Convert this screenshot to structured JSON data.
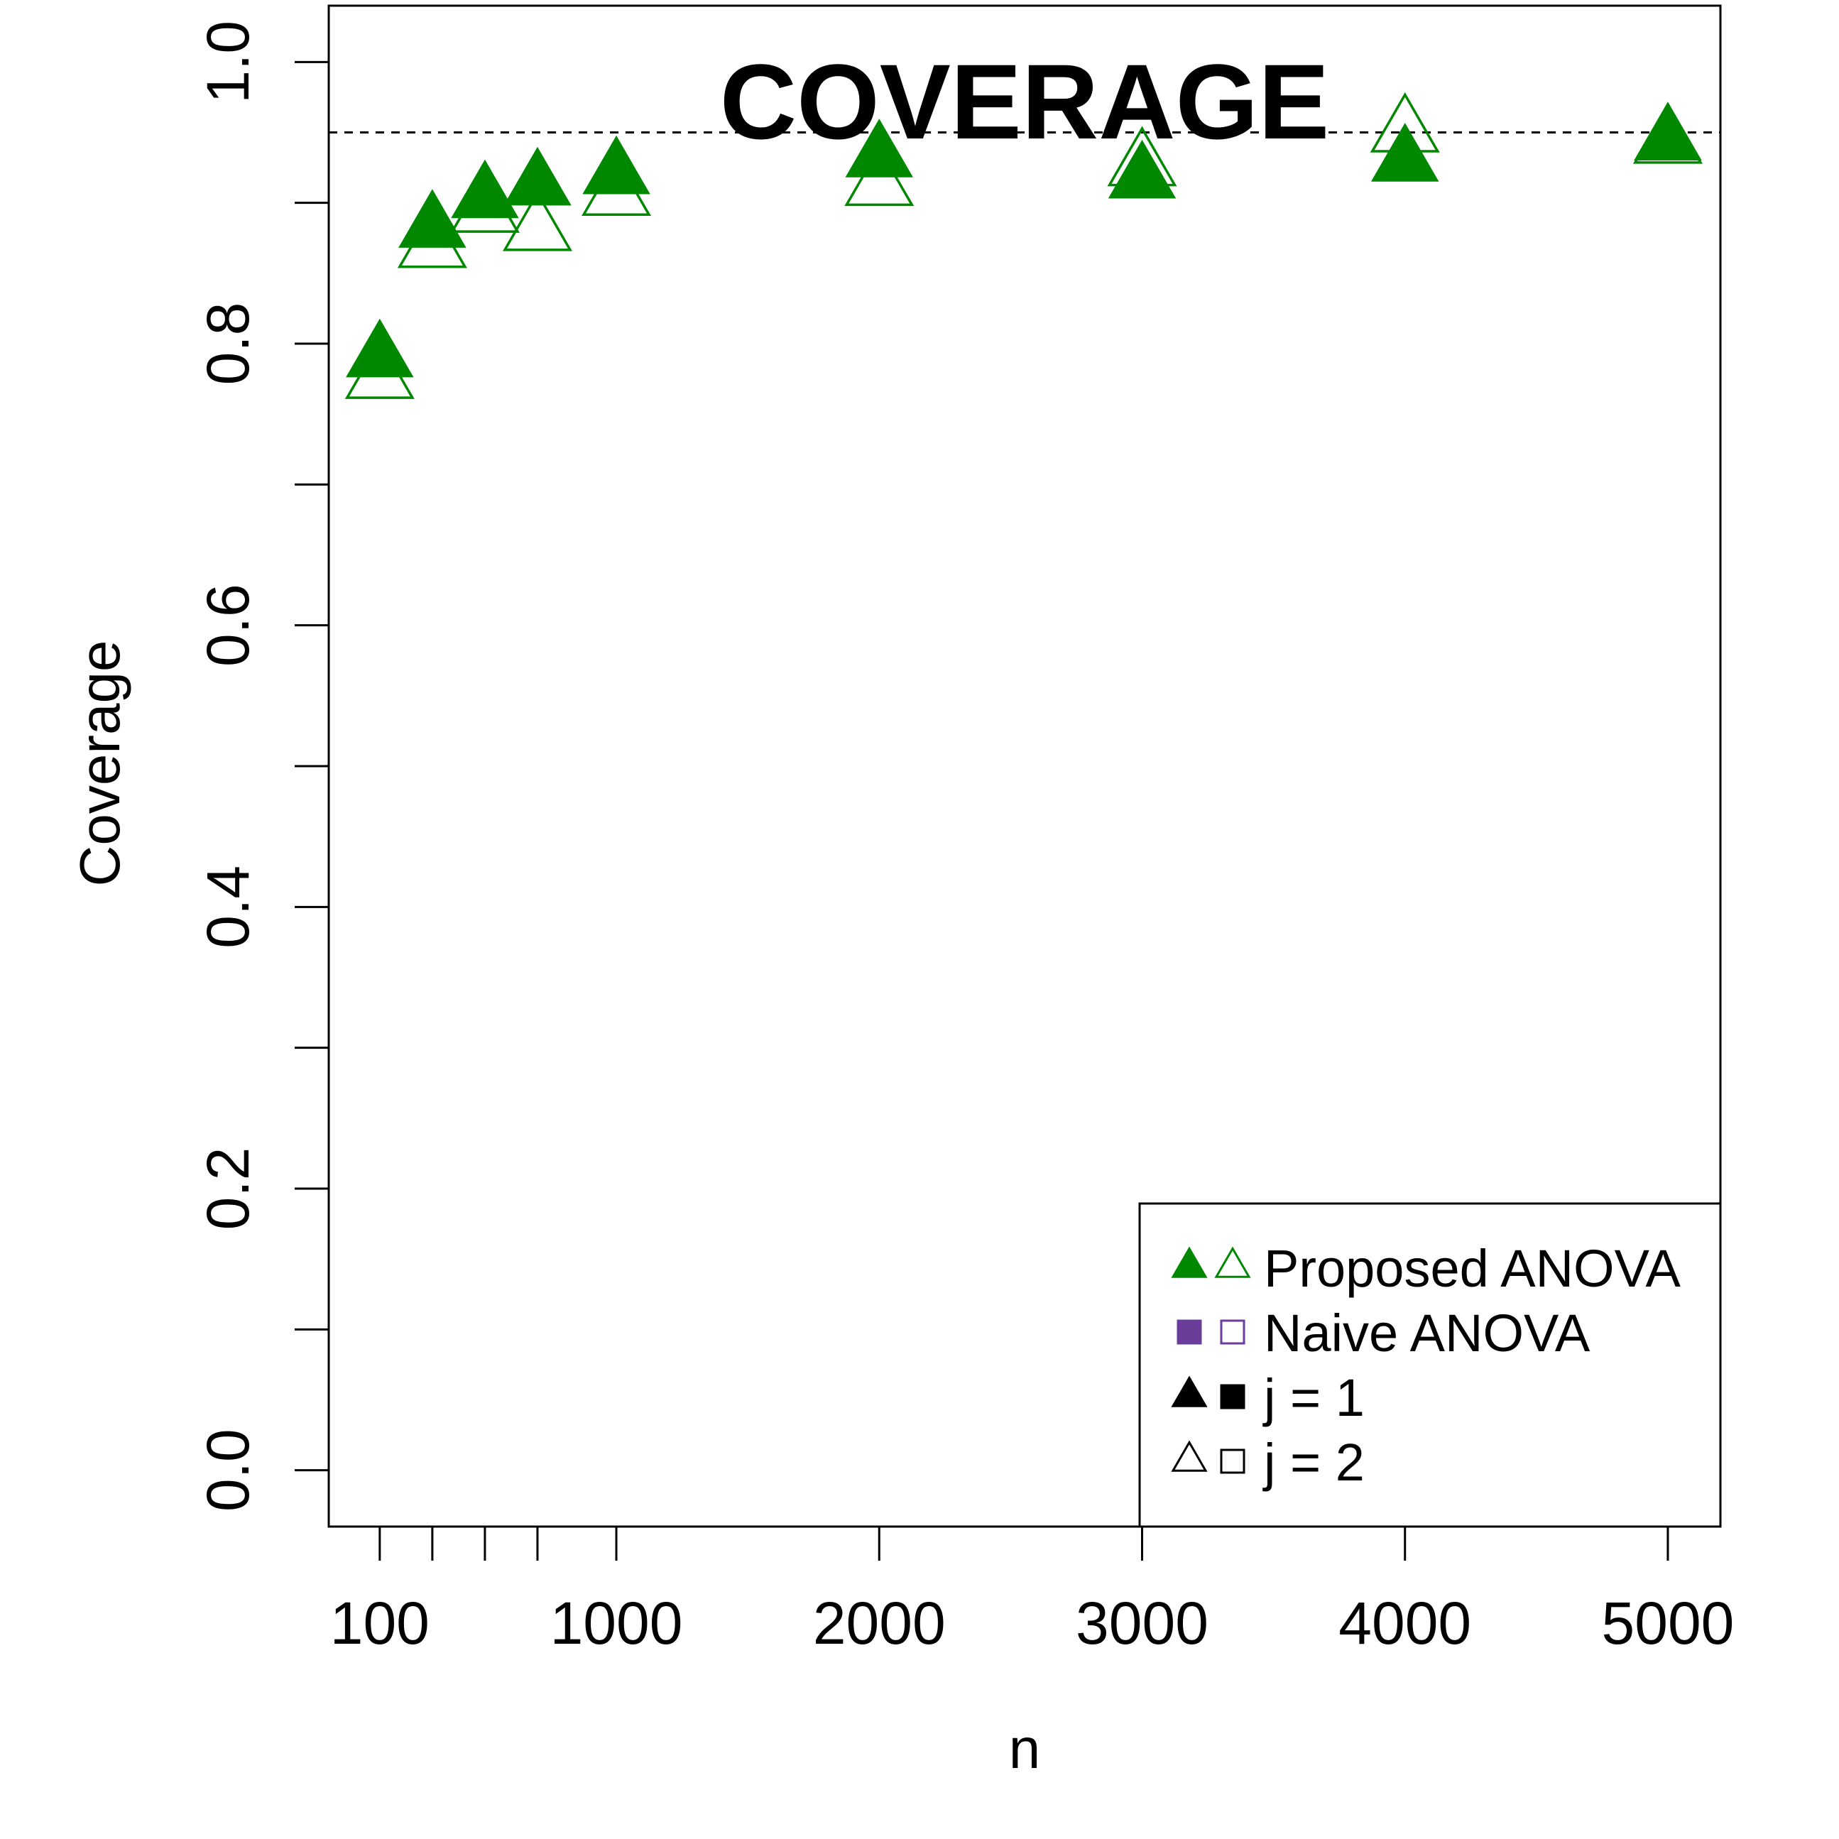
{
  "chart_data": {
    "type": "scatter",
    "title": "COVERAGE",
    "xlabel": "n",
    "ylabel": "Coverage",
    "xlim": [
      -94,
      5200
    ],
    "ylim": [
      -0.04,
      1.04
    ],
    "x_ticks": [
      100,
      300,
      500,
      700,
      1000,
      2000,
      3000,
      4000,
      5000
    ],
    "x_tick_labels": [
      {
        "x": 100,
        "label": "100"
      },
      {
        "x": 1000,
        "label": "1000"
      },
      {
        "x": 2000,
        "label": "2000"
      },
      {
        "x": 3000,
        "label": "3000"
      },
      {
        "x": 4000,
        "label": "4000"
      },
      {
        "x": 5000,
        "label": "5000"
      }
    ],
    "y_ticks": [
      0.0,
      0.1,
      0.2,
      0.3,
      0.4,
      0.5,
      0.6,
      0.7,
      0.8,
      0.9,
      1.0
    ],
    "y_tick_labels": [
      {
        "y": 0.0,
        "label": "0.0"
      },
      {
        "y": 0.2,
        "label": "0.2"
      },
      {
        "y": 0.4,
        "label": "0.4"
      },
      {
        "y": 0.6,
        "label": "0.6"
      },
      {
        "y": 0.8,
        "label": "0.8"
      },
      {
        "y": 1.0,
        "label": "1.0"
      }
    ],
    "reference_line": {
      "y": 0.95,
      "style": "dashed"
    },
    "grid": false,
    "legend_position": "bottom-right",
    "legend": [
      {
        "label": "Proposed ANOVA",
        "symbols": [
          "filled-triangle",
          "open-triangle"
        ],
        "color": "#008800"
      },
      {
        "label": "Naive ANOVA",
        "symbols": [
          "filled-square",
          "open-square"
        ],
        "color": "#6a3d9a"
      },
      {
        "label": "j = 1",
        "symbols": [
          "filled-triangle",
          "filled-square"
        ],
        "color": "#000000"
      },
      {
        "label": "j = 2",
        "symbols": [
          "open-triangle",
          "open-square"
        ],
        "color": "#000000"
      }
    ],
    "series": [
      {
        "name": "Proposed ANOVA j = 2",
        "marker": "open-triangle",
        "color": "#008800",
        "x": [
          100,
          300,
          500,
          700,
          1000,
          2000,
          3000,
          4000,
          5000
        ],
        "y": [
          0.775,
          0.868,
          0.893,
          0.88,
          0.905,
          0.912,
          0.926,
          0.95,
          0.942
        ]
      },
      {
        "name": "Proposed ANOVA j = 1",
        "marker": "filled-triangle",
        "color": "#008800",
        "x": [
          100,
          300,
          500,
          700,
          1000,
          2000,
          3000,
          4000,
          5000
        ],
        "y": [
          0.79,
          0.882,
          0.903,
          0.912,
          0.92,
          0.932,
          0.917,
          0.929,
          0.944
        ]
      }
    ]
  }
}
